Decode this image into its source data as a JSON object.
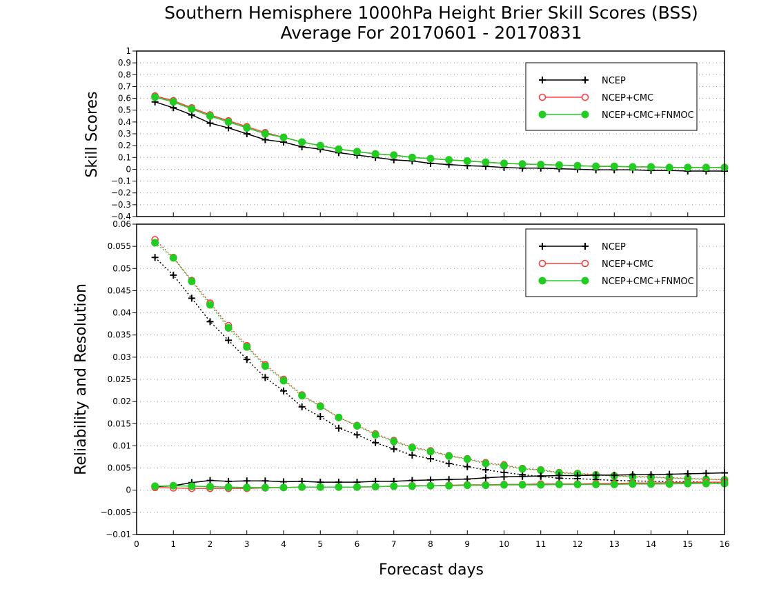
{
  "title_line1": "Southern Hemisphere 1000hPa Height Brier Skill Scores (BSS)",
  "title_line2": "Average For 20170601 - 20170831",
  "xlabel": "Forecast days",
  "chart_data": [
    {
      "type": "line",
      "panel": "top",
      "title": "Southern Hemisphere 1000hPa Height Brier Skill Scores (BSS)",
      "subtitle": "Average For 20170601 - 20170831",
      "ylabel": "Skill Scores",
      "xlabel": "Forecast days",
      "xlim": [
        0,
        16
      ],
      "ylim": [
        -0.4,
        1
      ],
      "xticks": [
        0,
        1,
        2,
        3,
        4,
        5,
        6,
        7,
        8,
        9,
        10,
        11,
        12,
        13,
        14,
        15,
        16
      ],
      "yticks": [
        -0.4,
        -0.3,
        -0.2,
        -0.1,
        0,
        0.1,
        0.2,
        0.3,
        0.4,
        0.5,
        0.6,
        0.7,
        0.8,
        0.9,
        1
      ],
      "grid": true,
      "legend": "top-right",
      "x": [
        0.5,
        1,
        1.5,
        2,
        2.5,
        3,
        3.5,
        4,
        4.5,
        5,
        5.5,
        6,
        6.5,
        7,
        7.5,
        8,
        8.5,
        9,
        9.5,
        10,
        10.5,
        11,
        11.5,
        12,
        12.5,
        13,
        13.5,
        14,
        14.5,
        15,
        15.5,
        16
      ],
      "series": [
        {
          "name": "NCEP",
          "color": "#000000",
          "marker": "plus",
          "style": "solid",
          "values": [
            0.57,
            0.52,
            0.46,
            0.39,
            0.35,
            0.3,
            0.25,
            0.23,
            0.19,
            0.17,
            0.14,
            0.12,
            0.1,
            0.08,
            0.07,
            0.05,
            0.04,
            0.03,
            0.025,
            0.015,
            0.01,
            0.01,
            0.005,
            0.0,
            -0.005,
            -0.005,
            -0.005,
            -0.01,
            -0.01,
            -0.015,
            -0.015,
            -0.015
          ]
        },
        {
          "name": "NCEP+CMC",
          "color": "#ff3b3b",
          "marker": "open-circle",
          "style": "solid",
          "values": [
            0.62,
            0.58,
            0.52,
            0.46,
            0.41,
            0.36,
            0.31,
            0.27,
            0.23,
            0.2,
            0.17,
            0.15,
            0.13,
            0.12,
            0.1,
            0.09,
            0.08,
            0.07,
            0.06,
            0.05,
            0.045,
            0.04,
            0.035,
            0.03,
            0.025,
            0.025,
            0.02,
            0.02,
            0.015,
            0.015,
            0.015,
            0.015
          ]
        },
        {
          "name": "NCEP+CMC+FNMOC",
          "color": "#22cc22",
          "marker": "filled-circle",
          "style": "solid",
          "values": [
            0.61,
            0.57,
            0.51,
            0.45,
            0.4,
            0.35,
            0.3,
            0.27,
            0.23,
            0.2,
            0.17,
            0.15,
            0.13,
            0.12,
            0.1,
            0.09,
            0.08,
            0.07,
            0.06,
            0.05,
            0.045,
            0.04,
            0.035,
            0.03,
            0.025,
            0.025,
            0.02,
            0.02,
            0.015,
            0.015,
            0.015,
            0.015
          ]
        }
      ]
    },
    {
      "type": "line",
      "panel": "bottom",
      "ylabel": "Reliability and Resolution",
      "xlabel": "Forecast days",
      "xlim": [
        0,
        16
      ],
      "ylim": [
        -0.01,
        0.06
      ],
      "xticks": [
        0,
        1,
        2,
        3,
        4,
        5,
        6,
        7,
        8,
        9,
        10,
        11,
        12,
        13,
        14,
        15,
        16
      ],
      "yticks": [
        -0.01,
        -0.005,
        0,
        0.005,
        0.01,
        0.015,
        0.02,
        0.025,
        0.03,
        0.035,
        0.04,
        0.045,
        0.05,
        0.055,
        0.06
      ],
      "grid": true,
      "legend": "top-right",
      "x": [
        0.5,
        1,
        1.5,
        2,
        2.5,
        3,
        3.5,
        4,
        4.5,
        5,
        5.5,
        6,
        6.5,
        7,
        7.5,
        8,
        8.5,
        9,
        9.5,
        10,
        10.5,
        11,
        11.5,
        12,
        12.5,
        13,
        13.5,
        14,
        14.5,
        15,
        15.5,
        16
      ],
      "series": [
        {
          "name": "NCEP",
          "color": "#000000",
          "marker": "plus",
          "style": "dotted",
          "kind": "resolution",
          "values": [
            0.0525,
            0.0485,
            0.0433,
            0.038,
            0.0338,
            0.0295,
            0.0254,
            0.0224,
            0.0188,
            0.0166,
            0.014,
            0.0125,
            0.0107,
            0.0093,
            0.0079,
            0.0071,
            0.006,
            0.0053,
            0.0046,
            0.004,
            0.0035,
            0.0031,
            0.0027,
            0.0026,
            0.0024,
            0.0022,
            0.0021,
            0.002,
            0.0019,
            0.0019,
            0.0018,
            0.0017
          ]
        },
        {
          "name": "NCEP+CMC",
          "color": "#ff3b3b",
          "marker": "open-circle",
          "style": "dotted",
          "kind": "resolution",
          "values": [
            0.0565,
            0.0525,
            0.0473,
            0.0422,
            0.0371,
            0.0326,
            0.0283,
            0.025,
            0.0215,
            0.019,
            0.0164,
            0.0146,
            0.0127,
            0.0112,
            0.0097,
            0.0089,
            0.0078,
            0.0071,
            0.0062,
            0.0057,
            0.0049,
            0.0046,
            0.004,
            0.0038,
            0.0035,
            0.0033,
            0.0031,
            0.003,
            0.0028,
            0.0027,
            0.0025,
            0.0024
          ]
        },
        {
          "name": "NCEP+CMC+FNMOC",
          "color": "#22cc22",
          "marker": "filled-circle",
          "style": "dotted",
          "kind": "resolution",
          "values": [
            0.0558,
            0.0524,
            0.0471,
            0.0418,
            0.0366,
            0.0323,
            0.028,
            0.0247,
            0.0213,
            0.0189,
            0.0164,
            0.0145,
            0.0125,
            0.011,
            0.0096,
            0.0087,
            0.0077,
            0.007,
            0.006,
            0.0055,
            0.0048,
            0.0045,
            0.0039,
            0.0037,
            0.0034,
            0.0032,
            0.003,
            0.0029,
            0.0027,
            0.0026,
            0.0024,
            0.0023
          ]
        },
        {
          "name": "NCEP",
          "color": "#000000",
          "marker": "plus",
          "style": "solid",
          "kind": "reliability",
          "values": [
            0.0008,
            0.001,
            0.0017,
            0.0022,
            0.002,
            0.0021,
            0.0021,
            0.0019,
            0.002,
            0.0018,
            0.0018,
            0.0018,
            0.002,
            0.002,
            0.0022,
            0.0023,
            0.0024,
            0.0025,
            0.0028,
            0.003,
            0.0031,
            0.0032,
            0.0033,
            0.0033,
            0.0034,
            0.0034,
            0.0035,
            0.0035,
            0.0036,
            0.0037,
            0.0038,
            0.0039
          ]
        },
        {
          "name": "NCEP+CMC",
          "color": "#ff3b3b",
          "marker": "open-circle",
          "style": "solid",
          "kind": "reliability",
          "values": [
            0.0006,
            0.0005,
            0.0004,
            0.0004,
            0.0004,
            0.0004,
            0.0005,
            0.0006,
            0.0007,
            0.0007,
            0.0007,
            0.0007,
            0.0008,
            0.0009,
            0.001,
            0.001,
            0.0011,
            0.0012,
            0.0012,
            0.0013,
            0.0013,
            0.0014,
            0.0014,
            0.0014,
            0.0015,
            0.0015,
            0.0016,
            0.0016,
            0.0017,
            0.0017,
            0.0018,
            0.0018
          ]
        },
        {
          "name": "NCEP+CMC+FNMOC",
          "color": "#22cc22",
          "marker": "filled-circle",
          "style": "solid",
          "kind": "reliability",
          "values": [
            0.0009,
            0.001,
            0.0009,
            0.0008,
            0.0007,
            0.0006,
            0.0006,
            0.0006,
            0.0007,
            0.0007,
            0.0007,
            0.0007,
            0.0008,
            0.0009,
            0.0009,
            0.001,
            0.001,
            0.0011,
            0.0011,
            0.0012,
            0.0012,
            0.0012,
            0.0013,
            0.0013,
            0.0013,
            0.0013,
            0.0014,
            0.0014,
            0.0014,
            0.0015,
            0.0015,
            0.0015
          ]
        }
      ]
    }
  ],
  "legend_entries": [
    {
      "label": "NCEP",
      "icon": "plus-marker-icon",
      "color": "#000000"
    },
    {
      "label": "NCEP+CMC",
      "icon": "open-circle-marker-icon",
      "color": "#ff3b3b"
    },
    {
      "label": "NCEP+CMC+FNMOC",
      "icon": "filled-circle-marker-icon",
      "color": "#22cc22"
    }
  ]
}
